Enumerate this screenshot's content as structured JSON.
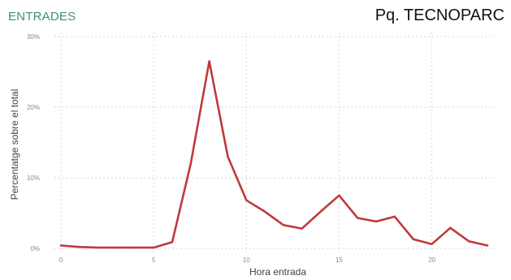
{
  "header": {
    "section_title": "ENTRADES",
    "location": "Pq. TECNOPARC"
  },
  "colors": {
    "line": "#c0393b",
    "section_title": "#3f8f7f",
    "grid": "#d6d6d6"
  },
  "chart_data": {
    "type": "line",
    "title": "",
    "xlabel": "Hora entrada",
    "ylabel": "Percentatge sobre el total",
    "xlim": [
      0,
      23
    ],
    "ylim": [
      0,
      30
    ],
    "xticks": [
      0,
      5,
      10,
      15,
      20
    ],
    "xtick_labels": [
      "0",
      "5",
      "10",
      "15",
      "20"
    ],
    "yticks": [
      0,
      10,
      20,
      30
    ],
    "ytick_labels": [
      "0%",
      "10%",
      "20%",
      "30%"
    ],
    "grid": true,
    "series": [
      {
        "x": [
          0,
          1,
          2,
          3,
          4,
          5,
          6,
          7,
          8,
          9,
          10,
          11,
          12,
          13,
          14,
          15,
          16,
          17,
          18,
          19,
          20,
          21,
          22,
          23
        ],
        "values": [
          0.4,
          0.2,
          0.1,
          0.1,
          0.1,
          0.1,
          0.9,
          12.0,
          26.5,
          13.0,
          6.8,
          5.2,
          3.3,
          2.8,
          5.2,
          7.5,
          4.3,
          3.8,
          4.5,
          1.3,
          0.6,
          2.9,
          1.0,
          0.4
        ]
      }
    ]
  }
}
